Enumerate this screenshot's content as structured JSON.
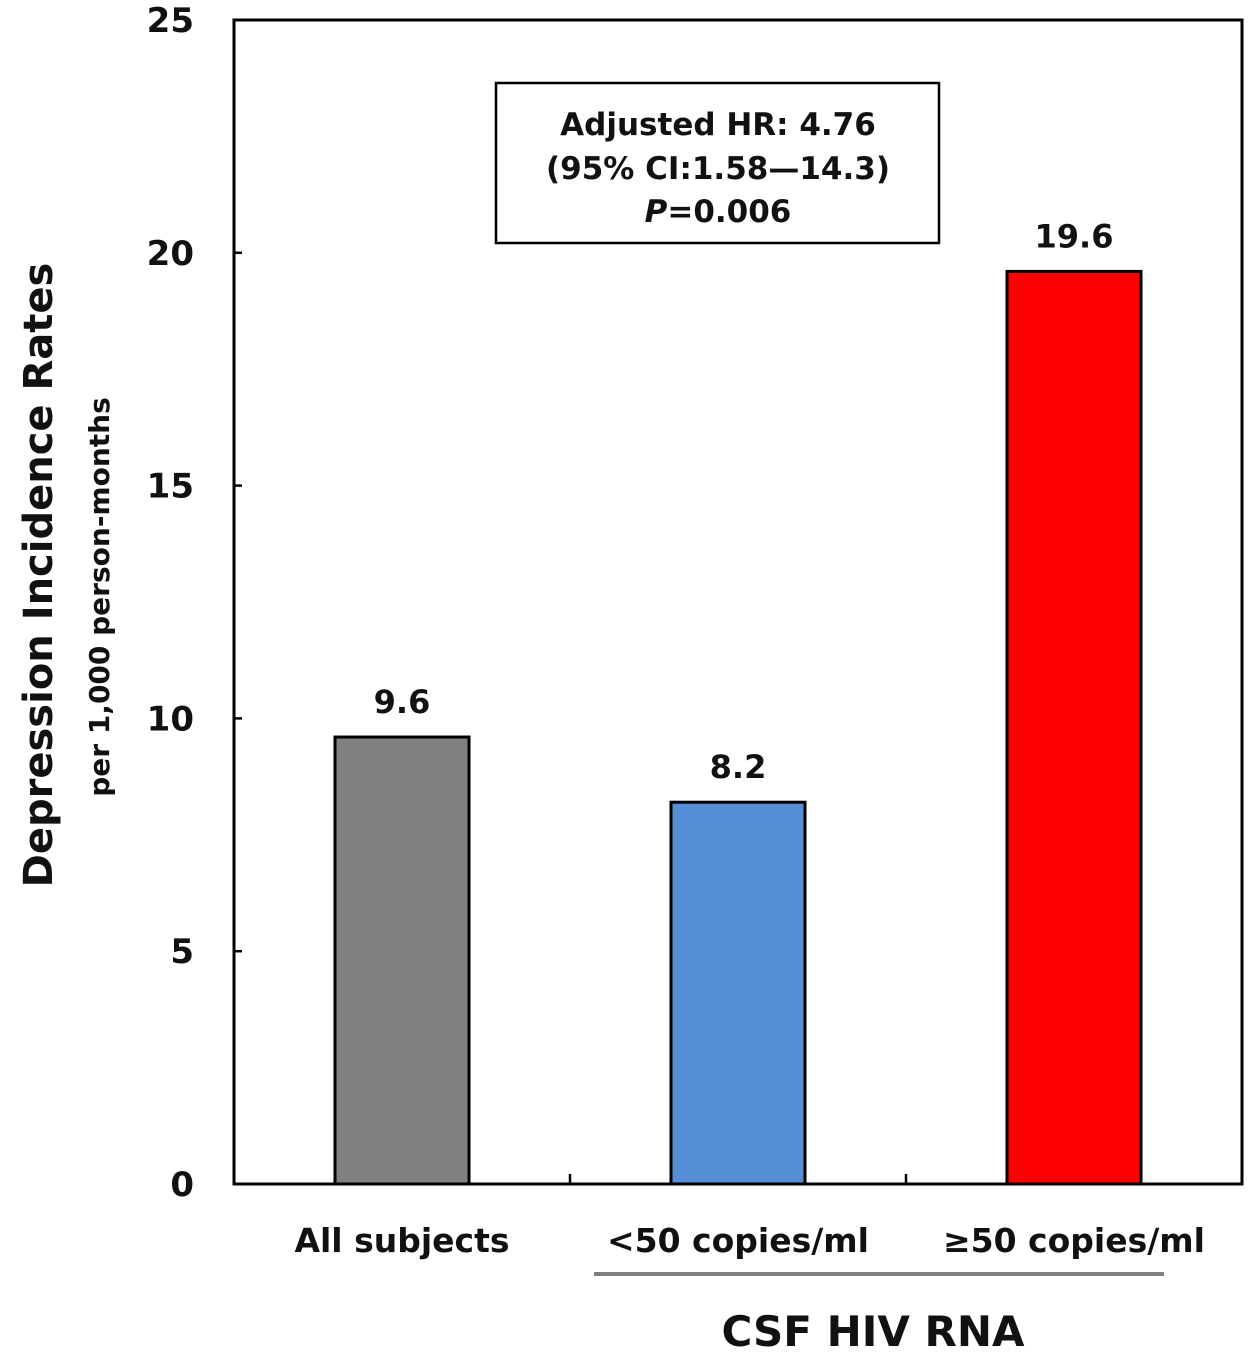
{
  "chart_data": {
    "type": "bar",
    "categories": [
      "All subjects",
      "<50 copies/ml",
      "≥50 copies/ml"
    ],
    "values": [
      9.6,
      8.2,
      19.6
    ],
    "value_labels": [
      "9.6",
      "8.2",
      "19.6"
    ],
    "colors": [
      "#808080",
      "#558ED5",
      "#FF0000"
    ],
    "ylabel": "Depression Incidence Rates",
    "ylabel_sub": "per 1,000 person-months",
    "ylim": [
      0,
      25
    ],
    "yticks": [
      0,
      5,
      10,
      15,
      20,
      25
    ],
    "group_label": "CSF HIV RNA",
    "group_categories": [
      "<50 copies/ml",
      "≥50 copies/ml"
    ],
    "annotation": {
      "line1": "Adjusted HR: 4.76",
      "line2": "(95% CI:1.58—14.3)",
      "line3_italic": "P",
      "line3_rest": "=0.006"
    },
    "grid": false,
    "legend": "none"
  }
}
